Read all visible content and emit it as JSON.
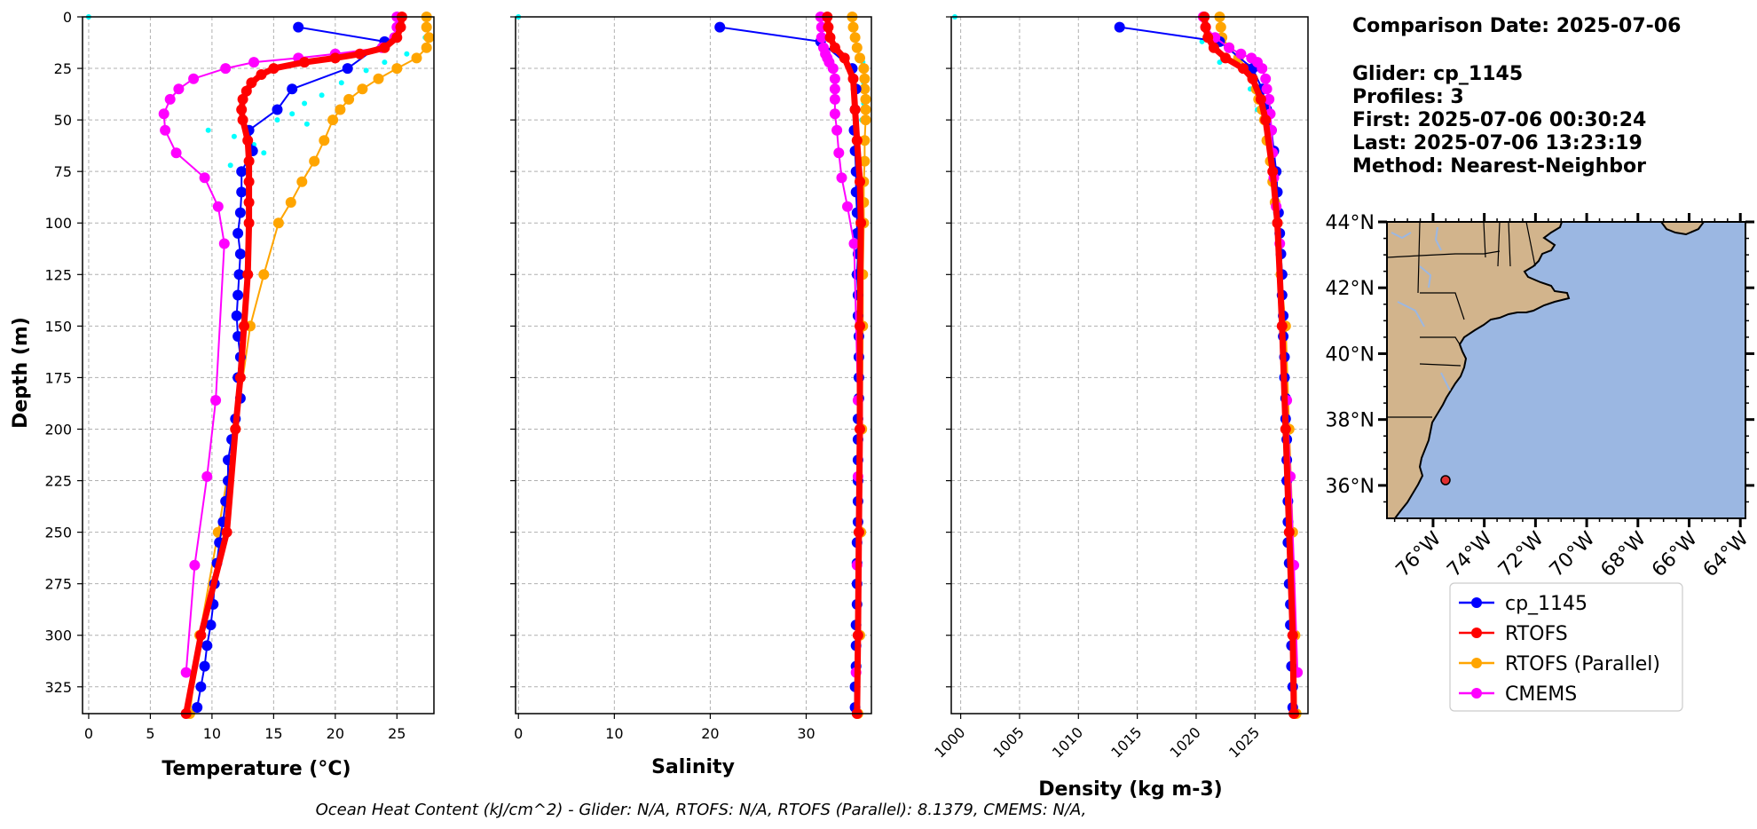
{
  "info": {
    "lines": [
      "Comparison Date: 2025-07-06",
      "",
      "Glider: cp_1145",
      "Profiles: 3",
      "First: 2025-07-06 00:30:24",
      "Last: 2025-07-06 13:23:19",
      "Method: Nearest-Neighbor"
    ]
  },
  "footer": "Ocean Heat Content (kJ/cm^2) - Glider: N/A,  RTOFS: N/A,  RTOFS (Parallel): 8.1379,  CMEMS: N/A,",
  "colors": {
    "glider": "#0000ff",
    "rtofs": "#ff0000",
    "rtofs_parallel": "#ffa500",
    "cmems": "#ff00ff",
    "glider_raw": "#00ffff",
    "ocean": "#9bb7e2",
    "land": "#d2b48c",
    "rivers": "#9bb7e2",
    "marker": "#e03030"
  },
  "legend": {
    "entries": [
      "cp_1145",
      "RTOFS",
      "RTOFS (Parallel)",
      "CMEMS"
    ]
  },
  "map": {
    "lat_ticks": [
      "44°N",
      "42°N",
      "40°N",
      "38°N",
      "36°N"
    ],
    "lon_ticks": [
      "76°W",
      "74°W",
      "72°W",
      "70°W",
      "68°W",
      "66°W",
      "64°W"
    ],
    "lat_range": [
      35,
      44
    ],
    "lon_range": [
      -77.8,
      -63.8
    ],
    "glider_position": {
      "lon": -75.5,
      "lat": 36.25
    }
  },
  "chart_data": [
    {
      "type": "line",
      "xlabel": "Temperature (°C)",
      "ylabel": "Depth (m)",
      "xlim": [
        -0.5,
        28
      ],
      "ylim": [
        338,
        0
      ],
      "xticks": [
        0,
        5,
        10,
        15,
        20,
        25
      ],
      "yticks": [
        0,
        25,
        50,
        75,
        100,
        125,
        150,
        175,
        200,
        225,
        250,
        275,
        300,
        325
      ],
      "series": [
        {
          "name": "cp_1145",
          "y": [
            5,
            12,
            25,
            35,
            45,
            55,
            65,
            75,
            85,
            95,
            105,
            115,
            125,
            135,
            145,
            155,
            165,
            175,
            185,
            195,
            205,
            215,
            225,
            235,
            245,
            255,
            265,
            275,
            285,
            295,
            305,
            315,
            325,
            335
          ],
          "x": [
            17,
            24,
            21,
            16.5,
            15.3,
            13,
            13.3,
            12.4,
            12.4,
            12.3,
            12.1,
            12.3,
            12.2,
            12.1,
            12,
            12.1,
            12.3,
            12.1,
            12.3,
            11.9,
            11.6,
            11.3,
            11.3,
            11.1,
            10.9,
            10.6,
            10.4,
            10.2,
            10.1,
            9.9,
            9.6,
            9.4,
            9.1,
            8.8
          ]
        },
        {
          "name": "RTOFS",
          "y": [
            0,
            5,
            10,
            15,
            18,
            20,
            22,
            25,
            28,
            32,
            36,
            40,
            45,
            50,
            60,
            70,
            80,
            90,
            100,
            125,
            150,
            175,
            200,
            250,
            300,
            338
          ],
          "x": [
            25.4,
            25.3,
            25,
            24,
            22,
            20,
            17.5,
            15,
            14,
            13.2,
            12.8,
            12.5,
            12.4,
            12.5,
            12.9,
            13,
            13,
            13,
            13,
            12.9,
            12.6,
            12.3,
            11.9,
            11.2,
            9.1,
            7.9
          ]
        },
        {
          "name": "RTOFS (Parallel)",
          "y": [
            0,
            5,
            10,
            15,
            20,
            25,
            30,
            35,
            40,
            45,
            50,
            60,
            70,
            80,
            90,
            100,
            125,
            150,
            200,
            250,
            300,
            338
          ],
          "x": [
            27.4,
            27.4,
            27.6,
            27.4,
            26.6,
            25,
            23.5,
            22.2,
            21.1,
            20.4,
            19.8,
            19.1,
            18.3,
            17.3,
            16.4,
            15.4,
            14.2,
            13.1,
            11.9,
            10.5,
            9,
            8.2
          ]
        },
        {
          "name": "CMEMS",
          "y": [
            0,
            5,
            10,
            15,
            18,
            20,
            22,
            25,
            30,
            35,
            40,
            47,
            55,
            66,
            78,
            92,
            110,
            186,
            223,
            266,
            318
          ],
          "x": [
            25,
            25,
            24.8,
            23.8,
            20,
            17,
            13.4,
            11.1,
            8.5,
            7.3,
            6.6,
            6.1,
            6.2,
            7.1,
            9.4,
            10.5,
            11,
            10.3,
            9.6,
            8.6,
            7.9
          ]
        },
        {
          "name": "glider raw",
          "y": [
            0,
            10,
            18,
            22,
            26,
            32,
            38,
            42,
            47,
            50,
            52,
            55,
            58,
            62,
            66,
            72
          ],
          "x": [
            0,
            27.3,
            25.8,
            24,
            22.5,
            20.5,
            18.9,
            17.5,
            16.5,
            15.3,
            17.7,
            9.7,
            11.8,
            13.4,
            14.2,
            11.5
          ]
        }
      ]
    },
    {
      "type": "line",
      "xlabel": "Salinity",
      "ylabel": "",
      "xlim": [
        -0.3,
        36.8
      ],
      "ylim": [
        338,
        0
      ],
      "xticks": [
        0,
        10,
        20,
        30
      ],
      "series": [
        {
          "name": "cp_1145",
          "y": [
            5,
            12,
            25,
            35,
            45,
            55,
            65,
            75,
            85,
            95,
            105,
            115,
            125,
            135,
            145,
            155,
            165,
            175,
            185,
            195,
            205,
            215,
            225,
            235,
            245,
            255,
            265,
            275,
            285,
            295,
            305,
            315,
            325,
            335
          ],
          "x": [
            21,
            31.5,
            34.8,
            35.2,
            35.1,
            35,
            35.1,
            35.2,
            35.2,
            35.3,
            35.3,
            35.4,
            35.3,
            35.4,
            35.4,
            35.5,
            35.5,
            35.5,
            35.5,
            35.4,
            35.4,
            35.4,
            35.4,
            35.4,
            35.4,
            35.3,
            35.3,
            35.3,
            35.3,
            35.2,
            35.2,
            35.2,
            35.1,
            35.1
          ]
        },
        {
          "name": "RTOFS",
          "y": [
            0,
            5,
            10,
            15,
            20,
            30,
            45,
            60,
            80,
            100,
            150,
            200,
            250,
            300,
            338
          ],
          "x": [
            32.2,
            32.3,
            32.5,
            33,
            34,
            34.9,
            35.1,
            35.3,
            35.6,
            35.7,
            35.6,
            35.6,
            35.5,
            35.4,
            35.3
          ]
        },
        {
          "name": "RTOFS (Parallel)",
          "y": [
            0,
            5,
            10,
            15,
            20,
            25,
            30,
            35,
            40,
            45,
            50,
            60,
            70,
            80,
            90,
            100,
            125,
            150,
            200,
            250,
            300,
            338
          ],
          "x": [
            34.8,
            34.9,
            35.1,
            35.3,
            35.6,
            36,
            36.1,
            36.1,
            36.2,
            36.2,
            36.2,
            36.1,
            36.1,
            36,
            36,
            36,
            35.9,
            35.9,
            35.8,
            35.7,
            35.6,
            35.4
          ]
        },
        {
          "name": "CMEMS",
          "y": [
            0,
            5,
            10,
            15,
            18,
            20,
            22,
            25,
            30,
            35,
            40,
            47,
            55,
            66,
            78,
            92,
            110,
            186,
            223,
            266,
            318
          ],
          "x": [
            31.5,
            31.6,
            31.6,
            31.8,
            32,
            32.2,
            32.4,
            32.8,
            33,
            33,
            33,
            33,
            33.2,
            33.4,
            33.7,
            34.3,
            35,
            35.4,
            35.4,
            35.3,
            35.2
          ]
        },
        {
          "name": "glider raw",
          "y": [
            0,
            22,
            32,
            42,
            50
          ],
          "x": [
            0,
            35.9,
            36,
            36,
            35.8
          ]
        }
      ]
    },
    {
      "type": "line",
      "xlabel": "Density (kg m-3)",
      "ylabel": "",
      "xlim": [
        999.2,
        1029.5
      ],
      "ylim": [
        338,
        0
      ],
      "xticks": [
        1000,
        1005,
        1010,
        1015,
        1020,
        1025
      ],
      "series": [
        {
          "name": "cp_1145",
          "y": [
            5,
            12,
            25,
            35,
            45,
            55,
            65,
            75,
            85,
            95,
            105,
            115,
            125,
            135,
            145,
            155,
            165,
            175,
            185,
            195,
            205,
            215,
            225,
            235,
            245,
            255,
            265,
            275,
            285,
            295,
            305,
            315,
            325,
            335
          ],
          "x": [
            1013.5,
            1022,
            1024.8,
            1025.6,
            1026,
            1026.4,
            1026.6,
            1026.8,
            1026.9,
            1027,
            1027.1,
            1027.2,
            1027.3,
            1027.3,
            1027.4,
            1027.4,
            1027.5,
            1027.5,
            1027.6,
            1027.6,
            1027.7,
            1027.7,
            1027.7,
            1027.8,
            1027.8,
            1027.8,
            1027.9,
            1027.9,
            1028,
            1028,
            1028.1,
            1028.1,
            1028.2,
            1028.2
          ]
        },
        {
          "name": "RTOFS",
          "y": [
            0,
            5,
            10,
            15,
            20,
            25,
            30,
            40,
            50,
            75,
            100,
            150,
            200,
            250,
            300,
            338
          ],
          "x": [
            1020.7,
            1020.8,
            1021,
            1021.5,
            1022.5,
            1024,
            1024.8,
            1025.5,
            1025.9,
            1026.5,
            1026.9,
            1027.3,
            1027.6,
            1027.9,
            1028.2,
            1028.3
          ]
        },
        {
          "name": "RTOFS (Parallel)",
          "y": [
            0,
            5,
            10,
            15,
            20,
            25,
            30,
            35,
            40,
            45,
            50,
            60,
            70,
            80,
            90,
            100,
            125,
            150,
            200,
            250,
            300,
            338
          ],
          "x": [
            1022,
            1022.1,
            1022.2,
            1022.8,
            1023.6,
            1024.3,
            1024.8,
            1025.1,
            1025.3,
            1025.6,
            1025.8,
            1026,
            1026.3,
            1026.5,
            1026.7,
            1026.9,
            1027.2,
            1027.6,
            1027.9,
            1028.2,
            1028.4,
            1028.5
          ]
        },
        {
          "name": "CMEMS",
          "y": [
            0,
            5,
            10,
            15,
            18,
            20,
            22,
            25,
            30,
            35,
            40,
            47,
            55,
            66,
            78,
            92,
            110,
            186,
            223,
            266,
            318
          ],
          "x": [
            1020.6,
            1020.8,
            1021.6,
            1022.8,
            1023.8,
            1024.7,
            1025.2,
            1025.6,
            1025.9,
            1026,
            1026.2,
            1026.3,
            1026.4,
            1026.5,
            1026.6,
            1026.8,
            1027.1,
            1027.7,
            1028,
            1028.3,
            1028.6
          ]
        },
        {
          "name": "glider raw",
          "y": [
            0,
            12,
            22,
            35,
            45
          ],
          "x": [
            999.5,
            1020.5,
            1022,
            1024.6,
            1025.2
          ]
        }
      ]
    }
  ]
}
